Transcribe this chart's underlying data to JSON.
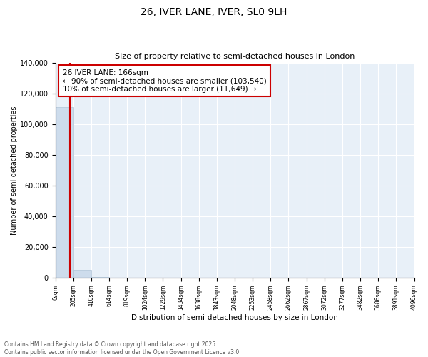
{
  "title": "26, IVER LANE, IVER, SL0 9LH",
  "subtitle": "Size of property relative to semi-detached houses in London",
  "xlabel": "Distribution of semi-detached houses by size in London",
  "ylabel": "Number of semi-detached properties",
  "property_size": 166,
  "annotation_text": "26 IVER LANE: 166sqm\n← 90% of semi-detached houses are smaller (103,540)\n10% of semi-detached houses are larger (11,649) →",
  "bar_color": "#cddcec",
  "bar_edge_color": "#b0c4d8",
  "vline_color": "#cc0000",
  "annotation_box_edgecolor": "#cc0000",
  "background_color": "#e8f0f8",
  "bin_edges": [
    0,
    205,
    410,
    614,
    819,
    1024,
    1229,
    1434,
    1638,
    1843,
    2048,
    2253,
    2458,
    2662,
    2867,
    3072,
    3277,
    3482,
    3686,
    3891,
    4096
  ],
  "bin_labels": [
    "0sqm",
    "205sqm",
    "410sqm",
    "614sqm",
    "819sqm",
    "1024sqm",
    "1229sqm",
    "1434sqm",
    "1638sqm",
    "1843sqm",
    "2048sqm",
    "2253sqm",
    "2458sqm",
    "2662sqm",
    "2867sqm",
    "3072sqm",
    "3277sqm",
    "3482sqm",
    "3686sqm",
    "3891sqm",
    "4096sqm"
  ],
  "bar_heights": [
    111000,
    5000,
    400,
    150,
    80,
    50,
    30,
    20,
    15,
    10,
    8,
    6,
    5,
    4,
    3,
    3,
    2,
    2,
    1,
    1
  ],
  "ylim": [
    0,
    140000
  ],
  "yticks": [
    0,
    20000,
    40000,
    60000,
    80000,
    100000,
    120000,
    140000
  ],
  "footer_line1": "Contains HM Land Registry data © Crown copyright and database right 2025.",
  "footer_line2": "Contains public sector information licensed under the Open Government Licence v3.0."
}
